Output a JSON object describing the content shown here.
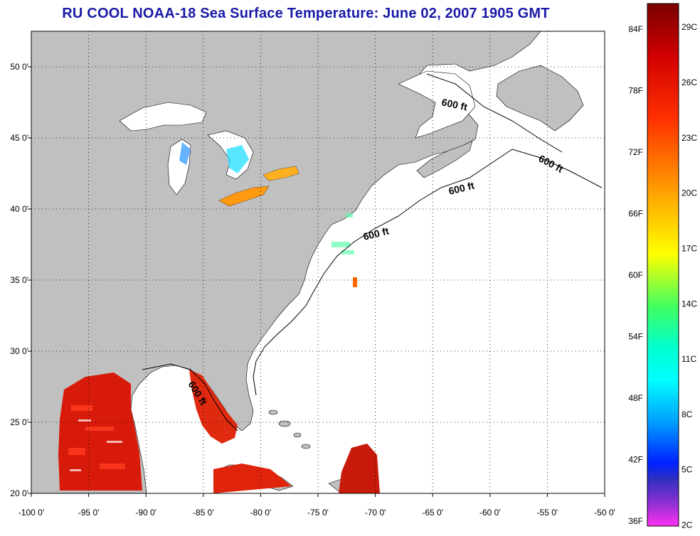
{
  "title": "RU COOL  NOAA-18  Sea Surface Temperature:  June 02, 2007 1905 GMT",
  "map": {
    "lon_range": [
      -100,
      -50
    ],
    "lat_range": [
      20,
      52.5
    ],
    "lon_ticks": [
      "-100 0'",
      "-95 0'",
      "-90 0'",
      "-85 0'",
      "-80 0'",
      "-75 0'",
      "-70 0'",
      "-65 0'",
      "-60 0'",
      "-55 0'",
      "-50 0'"
    ],
    "lat_ticks": [
      "50 0'",
      "45 0'",
      "40 0'",
      "35 0'",
      "30 0'",
      "25 0'",
      "20 0'"
    ],
    "grid": "dotted",
    "land_color": "#c0c0c0",
    "water_color": "#ffffff",
    "contour_label": "600 ft"
  },
  "colorbar": {
    "fahrenheit_labels": [
      "84F",
      "78F",
      "72F",
      "66F",
      "60F",
      "54F",
      "48F",
      "42F",
      "36F"
    ],
    "celsius_labels": [
      "29C",
      "26C",
      "23C",
      "20C",
      "17C",
      "14C",
      "11C",
      "8C",
      "5C",
      "2C"
    ],
    "colors": [
      "#8b0000",
      "#ff2000",
      "#ff7a00",
      "#ffff00",
      "#40ff60",
      "#00ffff",
      "#0070ff",
      "#0000ff",
      "#7030c0",
      "#ff30e0"
    ]
  }
}
